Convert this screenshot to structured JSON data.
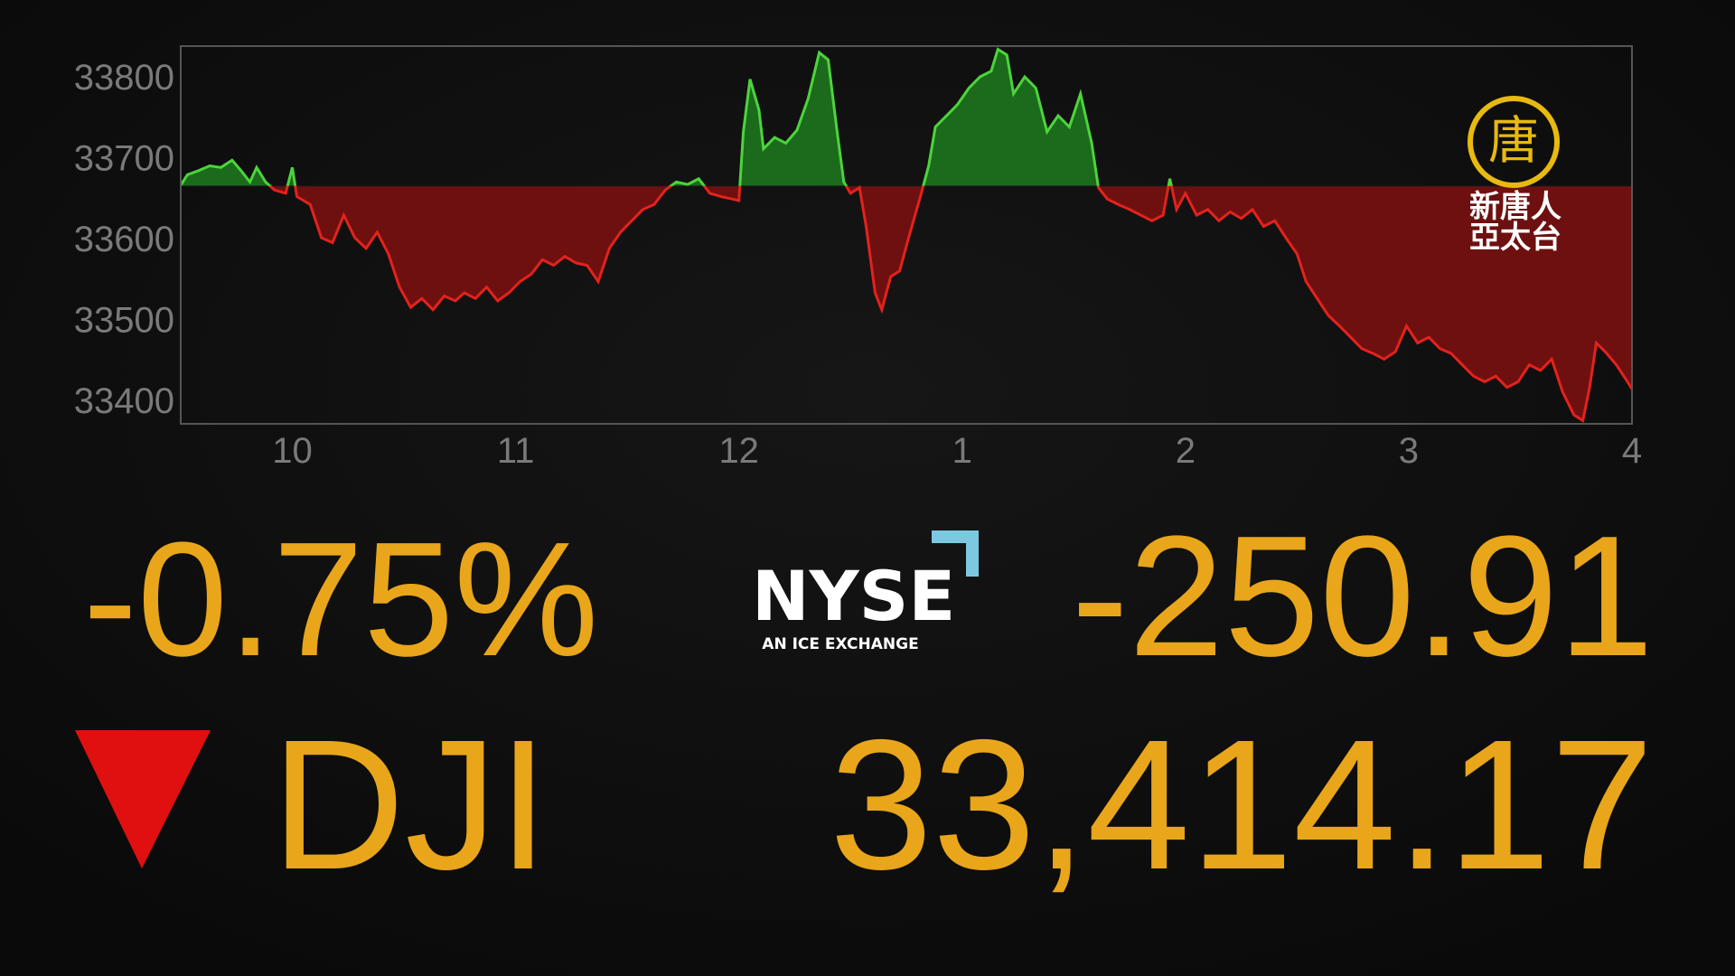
{
  "chart_data": {
    "type": "line",
    "x": [
      9.5,
      9.53,
      9.58,
      9.63,
      9.68,
      9.73,
      9.77,
      9.81,
      9.84,
      9.88,
      9.92,
      9.97,
      10.0,
      10.02,
      10.08,
      10.13,
      10.18,
      10.23,
      10.28,
      10.33,
      10.38,
      10.43,
      10.48,
      10.53,
      10.58,
      10.63,
      10.68,
      10.73,
      10.77,
      10.82,
      10.87,
      10.92,
      10.97,
      11.02,
      11.07,
      11.12,
      11.17,
      11.22,
      11.27,
      11.32,
      11.37,
      11.42,
      11.47,
      11.52,
      11.57,
      11.62,
      11.67,
      11.72,
      11.77,
      11.82,
      11.87,
      11.92,
      11.97,
      12.0,
      12.02,
      12.05,
      12.09,
      12.11,
      12.16,
      12.21,
      12.26,
      12.31,
      12.36,
      12.4,
      12.44,
      12.47,
      12.5,
      12.54,
      12.57,
      12.61,
      12.64,
      12.68,
      12.72,
      12.76,
      12.81,
      12.85,
      12.88,
      12.93,
      12.98,
      13.03,
      13.08,
      13.13,
      13.16,
      13.2,
      13.23,
      13.28,
      13.33,
      13.38,
      13.43,
      13.48,
      13.53,
      13.58,
      13.61,
      13.65,
      13.7,
      13.75,
      13.8,
      13.85,
      13.9,
      13.93,
      13.96,
      14.0,
      14.05,
      14.1,
      14.15,
      14.2,
      14.25,
      14.3,
      14.35,
      14.4,
      14.45,
      14.5,
      14.54,
      14.59,
      14.64,
      14.69,
      14.74,
      14.79,
      14.84,
      14.89,
      14.94,
      14.99,
      15.04,
      15.09,
      15.14,
      15.19,
      15.24,
      15.29,
      15.34,
      15.39,
      15.44,
      15.49,
      15.54,
      15.59,
      15.64,
      15.69,
      15.74,
      15.78,
      15.81,
      15.84,
      15.88,
      15.93,
      15.98,
      16.0
    ],
    "values": [
      33666,
      33679,
      33684,
      33690,
      33688,
      33697,
      33684,
      33670,
      33688,
      33670,
      33660,
      33656,
      33688,
      33652,
      33642,
      33601,
      33595,
      33629,
      33601,
      33588,
      33608,
      33581,
      33540,
      33515,
      33526,
      33512,
      33529,
      33523,
      33533,
      33526,
      33540,
      33523,
      33533,
      33547,
      33556,
      33574,
      33567,
      33578,
      33570,
      33567,
      33547,
      33588,
      33608,
      33622,
      33636,
      33642,
      33660,
      33670,
      33667,
      33674,
      33656,
      33652,
      33649,
      33647,
      33732,
      33797,
      33759,
      33711,
      33725,
      33718,
      33734,
      33773,
      33830,
      33821,
      33732,
      33670,
      33656,
      33663,
      33615,
      33533,
      33512,
      33553,
      33560,
      33601,
      33649,
      33690,
      33738,
      33752,
      33766,
      33786,
      33800,
      33807,
      33834,
      33827,
      33779,
      33800,
      33786,
      33732,
      33752,
      33738,
      33779,
      33718,
      33663,
      33649,
      33642,
      33636,
      33629,
      33622,
      33629,
      33674,
      33636,
      33656,
      33629,
      33636,
      33622,
      33633,
      33625,
      33636,
      33615,
      33622,
      33601,
      33581,
      33547,
      33526,
      33505,
      33492,
      33478,
      33464,
      33458,
      33451,
      33460,
      33492,
      33471,
      33478,
      33464,
      33458,
      33444,
      33430,
      33423,
      33430,
      33416,
      33423,
      33444,
      33437,
      33451,
      33410,
      33382,
      33375,
      33416,
      33471,
      33460,
      33444,
      33423,
      33414
    ],
    "reference_value": 33665,
    "color_above": "#4cd43c",
    "color_below": "#e3221c",
    "fill_above": "#1c6a1c",
    "fill_below": "#6e1010",
    "xlim": [
      9.5,
      16
    ],
    "ylim": [
      33371,
      33838
    ],
    "xticks": [
      10,
      11,
      12,
      {
        "value": 13,
        "label": "1"
      },
      {
        "value": 14,
        "label": "2"
      },
      {
        "value": 15,
        "label": "3"
      },
      {
        "value": 16,
        "label": "4"
      }
    ],
    "yticks": [
      33400,
      33500,
      33600,
      33700,
      33800
    ],
    "grid": false
  },
  "ticker": {
    "change_percent": "-0.75%",
    "change": "-250.91",
    "symbol": "DJI",
    "price": "33,414.17"
  },
  "exchange_logo": {
    "name": "NYSE",
    "tagline": "AN ICE EXCHANGE"
  },
  "watermark": {
    "emblem": "唐",
    "line1": "新唐人",
    "line2": "亞太台"
  }
}
